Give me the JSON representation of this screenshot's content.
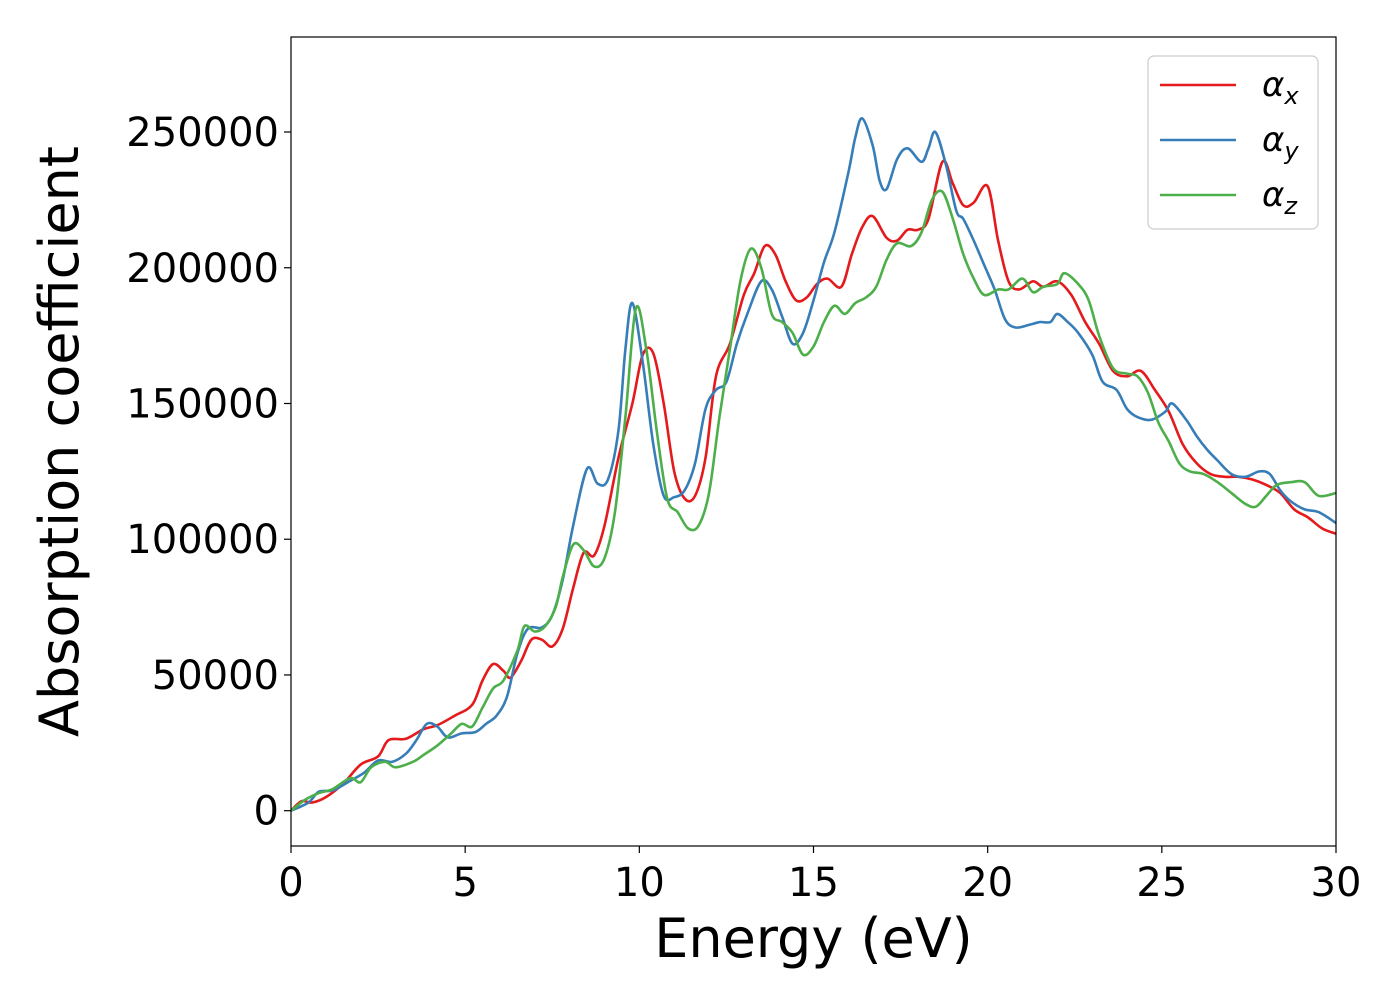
{
  "chart_data": {
    "type": "line",
    "xlabel": "Energy (eV)",
    "ylabel": "Absorption coefficient",
    "xlim": [
      0,
      30
    ],
    "ylim": [
      -13000,
      285000
    ],
    "xticks": [
      0,
      5,
      10,
      15,
      20,
      25,
      30
    ],
    "xtick_labels": [
      "0",
      "5",
      "10",
      "15",
      "20",
      "25",
      "30"
    ],
    "yticks": [
      0,
      50000,
      100000,
      150000,
      200000,
      250000
    ],
    "ytick_labels": [
      "0",
      "50000",
      "100000",
      "150000",
      "200000",
      "250000"
    ],
    "grid": false,
    "legend_position": "top-right",
    "series": [
      {
        "name": "α",
        "subscript": "x",
        "color": "#e41a1c",
        "points": [
          [
            0,
            0
          ],
          [
            0.3,
            3500
          ],
          [
            0.6,
            3000
          ],
          [
            1,
            5000
          ],
          [
            1.5,
            10000
          ],
          [
            2,
            17000
          ],
          [
            2.5,
            20000
          ],
          [
            2.8,
            26000
          ],
          [
            3.3,
            26500
          ],
          [
            3.8,
            30000
          ],
          [
            4.2,
            31500
          ],
          [
            4.7,
            35000
          ],
          [
            5.2,
            39000
          ],
          [
            5.5,
            48000
          ],
          [
            5.8,
            54000
          ],
          [
            6.1,
            51500
          ],
          [
            6.3,
            49000
          ],
          [
            6.6,
            55000
          ],
          [
            6.9,
            63000
          ],
          [
            7.2,
            63000
          ],
          [
            7.5,
            60500
          ],
          [
            7.8,
            67000
          ],
          [
            8.1,
            82000
          ],
          [
            8.4,
            95000
          ],
          [
            8.7,
            94000
          ],
          [
            9,
            105000
          ],
          [
            9.4,
            130000
          ],
          [
            9.8,
            150000
          ],
          [
            10.1,
            168000
          ],
          [
            10.4,
            168500
          ],
          [
            10.7,
            150000
          ],
          [
            11,
            125000
          ],
          [
            11.3,
            115000
          ],
          [
            11.6,
            116000
          ],
          [
            11.9,
            130000
          ],
          [
            12.2,
            160000
          ],
          [
            12.6,
            172000
          ],
          [
            13,
            190000
          ],
          [
            13.3,
            198000
          ],
          [
            13.6,
            208000
          ],
          [
            13.9,
            205000
          ],
          [
            14.2,
            195000
          ],
          [
            14.5,
            188000
          ],
          [
            14.8,
            189000
          ],
          [
            15.1,
            194000
          ],
          [
            15.4,
            196000
          ],
          [
            15.8,
            193000
          ],
          [
            16.1,
            205000
          ],
          [
            16.4,
            215000
          ],
          [
            16.7,
            219000
          ],
          [
            17.1,
            211000
          ],
          [
            17.4,
            210000
          ],
          [
            17.7,
            214000
          ],
          [
            18,
            214000
          ],
          [
            18.3,
            218000
          ],
          [
            18.7,
            239000
          ],
          [
            19,
            231000
          ],
          [
            19.3,
            223000
          ],
          [
            19.6,
            224000
          ],
          [
            20,
            230000
          ],
          [
            20.3,
            210000
          ],
          [
            20.6,
            195000
          ],
          [
            20.9,
            192000
          ],
          [
            21.3,
            195000
          ],
          [
            21.6,
            193000
          ],
          [
            22,
            195000
          ],
          [
            22.4,
            190000
          ],
          [
            22.8,
            180000
          ],
          [
            23.2,
            172000
          ],
          [
            23.6,
            162000
          ],
          [
            24,
            160000
          ],
          [
            24.4,
            162000
          ],
          [
            24.8,
            155000
          ],
          [
            25.2,
            147000
          ],
          [
            25.6,
            135000
          ],
          [
            26,
            128000
          ],
          [
            26.4,
            124000
          ],
          [
            26.8,
            123000
          ],
          [
            27.2,
            123000
          ],
          [
            27.6,
            122000
          ],
          [
            28,
            120000
          ],
          [
            28.4,
            117000
          ],
          [
            28.8,
            111000
          ],
          [
            29.2,
            108000
          ],
          [
            29.6,
            104000
          ],
          [
            30,
            102000
          ]
        ]
      },
      {
        "name": "α",
        "subscript": "y",
        "color": "#377eb8",
        "points": [
          [
            0,
            0
          ],
          [
            0.5,
            3000
          ],
          [
            0.8,
            7000
          ],
          [
            1.2,
            7500
          ],
          [
            1.7,
            11000
          ],
          [
            2.1,
            14000
          ],
          [
            2.5,
            18500
          ],
          [
            2.9,
            18000
          ],
          [
            3.3,
            21000
          ],
          [
            3.6,
            26000
          ],
          [
            3.9,
            32000
          ],
          [
            4.2,
            31000
          ],
          [
            4.5,
            27000
          ],
          [
            4.9,
            28500
          ],
          [
            5.3,
            29000
          ],
          [
            5.6,
            32000
          ],
          [
            5.9,
            35000
          ],
          [
            6.2,
            42000
          ],
          [
            6.5,
            58000
          ],
          [
            6.8,
            67000
          ],
          [
            7.2,
            67500
          ],
          [
            7.5,
            72000
          ],
          [
            7.8,
            85000
          ],
          [
            8.1,
            105000
          ],
          [
            8.5,
            126000
          ],
          [
            8.8,
            120500
          ],
          [
            9.1,
            122000
          ],
          [
            9.4,
            140000
          ],
          [
            9.6,
            170000
          ],
          [
            9.8,
            187000
          ],
          [
            10.1,
            165000
          ],
          [
            10.4,
            135000
          ],
          [
            10.7,
            116000
          ],
          [
            11,
            115500
          ],
          [
            11.3,
            118000
          ],
          [
            11.6,
            128000
          ],
          [
            11.9,
            148000
          ],
          [
            12.2,
            155000
          ],
          [
            12.5,
            158000
          ],
          [
            12.8,
            172000
          ],
          [
            13.1,
            183000
          ],
          [
            13.5,
            195000
          ],
          [
            13.8,
            192000
          ],
          [
            14.1,
            182000
          ],
          [
            14.4,
            172000
          ],
          [
            14.7,
            176000
          ],
          [
            15,
            188000
          ],
          [
            15.3,
            202000
          ],
          [
            15.6,
            213000
          ],
          [
            16,
            235000
          ],
          [
            16.2,
            248000
          ],
          [
            16.4,
            255000
          ],
          [
            16.7,
            245000
          ],
          [
            16.9,
            232000
          ],
          [
            17.1,
            229000
          ],
          [
            17.4,
            240000
          ],
          [
            17.7,
            244000
          ],
          [
            18.1,
            239000
          ],
          [
            18.3,
            244000
          ],
          [
            18.5,
            250000
          ],
          [
            18.8,
            238000
          ],
          [
            19.1,
            221000
          ],
          [
            19.3,
            218000
          ],
          [
            19.6,
            210000
          ],
          [
            19.9,
            201000
          ],
          [
            20.2,
            192000
          ],
          [
            20.5,
            181000
          ],
          [
            20.8,
            178000
          ],
          [
            21.2,
            179000
          ],
          [
            21.5,
            180000
          ],
          [
            21.8,
            180000
          ],
          [
            22,
            183000
          ],
          [
            22.3,
            180000
          ],
          [
            22.6,
            176000
          ],
          [
            23,
            168000
          ],
          [
            23.3,
            158000
          ],
          [
            23.7,
            155000
          ],
          [
            24,
            148000
          ],
          [
            24.3,
            145000
          ],
          [
            24.7,
            144000
          ],
          [
            25.1,
            147000
          ],
          [
            25.3,
            150000
          ],
          [
            25.7,
            144000
          ],
          [
            26,
            138000
          ],
          [
            26.3,
            133000
          ],
          [
            26.6,
            129000
          ],
          [
            27,
            124000
          ],
          [
            27.4,
            123000
          ],
          [
            27.8,
            125000
          ],
          [
            28.1,
            124000
          ],
          [
            28.4,
            118000
          ],
          [
            28.7,
            114000
          ],
          [
            29.1,
            111000
          ],
          [
            29.5,
            110000
          ],
          [
            30,
            106000
          ]
        ]
      },
      {
        "name": "α",
        "subscript": "z",
        "color": "#4daf4a",
        "points": [
          [
            0,
            0
          ],
          [
            0.4,
            4000
          ],
          [
            0.8,
            6500
          ],
          [
            1.2,
            8000
          ],
          [
            1.7,
            12000
          ],
          [
            2,
            10500
          ],
          [
            2.3,
            16000
          ],
          [
            2.7,
            18000
          ],
          [
            3,
            16000
          ],
          [
            3.5,
            18000
          ],
          [
            3.8,
            20500
          ],
          [
            4.2,
            24000
          ],
          [
            4.6,
            28500
          ],
          [
            4.9,
            32000
          ],
          [
            5.2,
            31000
          ],
          [
            5.5,
            38000
          ],
          [
            5.8,
            45000
          ],
          [
            6.1,
            48000
          ],
          [
            6.5,
            59000
          ],
          [
            6.7,
            68000
          ],
          [
            7,
            66000
          ],
          [
            7.3,
            68000
          ],
          [
            7.6,
            75000
          ],
          [
            7.8,
            86000
          ],
          [
            8.1,
            98000
          ],
          [
            8.4,
            96000
          ],
          [
            8.7,
            90000
          ],
          [
            9,
            93000
          ],
          [
            9.3,
            110000
          ],
          [
            9.6,
            145000
          ],
          [
            9.9,
            185000
          ],
          [
            10.2,
            170000
          ],
          [
            10.5,
            140000
          ],
          [
            10.8,
            115000
          ],
          [
            11.1,
            110000
          ],
          [
            11.4,
            104000
          ],
          [
            11.7,
            105000
          ],
          [
            12,
            117000
          ],
          [
            12.3,
            145000
          ],
          [
            12.6,
            170000
          ],
          [
            12.9,
            195000
          ],
          [
            13.2,
            207000
          ],
          [
            13.5,
            200000
          ],
          [
            13.8,
            183000
          ],
          [
            14.1,
            180000
          ],
          [
            14.4,
            176000
          ],
          [
            14.7,
            168000
          ],
          [
            15,
            171000
          ],
          [
            15.3,
            180000
          ],
          [
            15.6,
            186000
          ],
          [
            15.9,
            183000
          ],
          [
            16.2,
            187000
          ],
          [
            16.5,
            189000
          ],
          [
            16.8,
            193000
          ],
          [
            17.1,
            203000
          ],
          [
            17.4,
            209000
          ],
          [
            17.8,
            208000
          ],
          [
            18.1,
            213000
          ],
          [
            18.4,
            225000
          ],
          [
            18.7,
            228000
          ],
          [
            19,
            218000
          ],
          [
            19.3,
            205000
          ],
          [
            19.6,
            196000
          ],
          [
            19.9,
            190000
          ],
          [
            20.3,
            192000
          ],
          [
            20.6,
            192000
          ],
          [
            21,
            196000
          ],
          [
            21.3,
            191000
          ],
          [
            21.6,
            193000
          ],
          [
            22,
            194000
          ],
          [
            22.2,
            198000
          ],
          [
            22.6,
            194000
          ],
          [
            22.9,
            188000
          ],
          [
            23.2,
            175000
          ],
          [
            23.6,
            163000
          ],
          [
            24,
            161000
          ],
          [
            24.3,
            160000
          ],
          [
            24.6,
            154000
          ],
          [
            24.9,
            143000
          ],
          [
            25.2,
            136000
          ],
          [
            25.5,
            128000
          ],
          [
            25.8,
            125000
          ],
          [
            26.2,
            124000
          ],
          [
            26.6,
            121000
          ],
          [
            27,
            117000
          ],
          [
            27.4,
            113000
          ],
          [
            27.7,
            112000
          ],
          [
            28,
            116000
          ],
          [
            28.3,
            120000
          ],
          [
            28.7,
            121000
          ],
          [
            29.1,
            121000
          ],
          [
            29.5,
            116000
          ],
          [
            30,
            117000
          ]
        ]
      }
    ]
  }
}
